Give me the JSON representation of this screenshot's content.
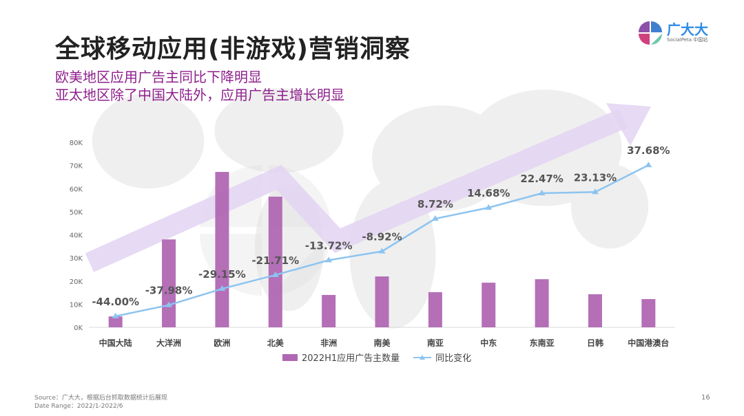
{
  "title": "全球移动应用(非游戏)营销洞察",
  "subtitles": [
    "欧美地区应用广告主同比下降明显",
    "亚太地区除了中国大陆外，应用广告主增长明显"
  ],
  "logo": {
    "name": "广大大",
    "sub": "SocialPeta 中国站"
  },
  "watermark": {
    "name": "广大大",
    "sub": "SocialPeta 中国站"
  },
  "footer": {
    "source": "Source：广大大，根据后台抓取数据统计后展现",
    "range": "Date Range：2022/1-2022/6"
  },
  "page_number": "16",
  "colors": {
    "bar": "#b067b3",
    "line": "#8cc4f0",
    "arrow": "#e3d3f2",
    "title": "#222222",
    "subtitle": "#8e1f8c"
  },
  "chart_data": {
    "type": "bar+line",
    "categories": [
      "中国大陆",
      "大洋洲",
      "欧洲",
      "北美",
      "非洲",
      "南美",
      "南亚",
      "中东",
      "东南亚",
      "日韩",
      "中国港澳台"
    ],
    "series": [
      {
        "name": "2022H1应用广告主数量",
        "type": "bar",
        "values": [
          4700,
          38000,
          67200,
          56500,
          14000,
          22000,
          15200,
          19300,
          20800,
          14300,
          12200
        ]
      },
      {
        "name": "同比变化",
        "type": "line",
        "values": [
          -44.0,
          -37.98,
          -29.15,
          -21.71,
          -13.72,
          -8.92,
          8.72,
          14.68,
          22.47,
          23.13,
          37.68
        ],
        "labels": [
          "-44.00%",
          "-37.98%",
          "-29.15%",
          "-21.71%",
          "-13.72%",
          "-8.92%",
          "8.72%",
          "14.68%",
          "22.47%",
          "23.13%",
          "37.68%"
        ]
      }
    ],
    "yticks": [
      "0K",
      "10K",
      "20K",
      "30K",
      "40K",
      "50K",
      "60K",
      "70K",
      "80K"
    ],
    "ylim": [
      0,
      80000
    ],
    "y2lim": [
      -50,
      50
    ],
    "legend": "bottom",
    "grid": false
  }
}
